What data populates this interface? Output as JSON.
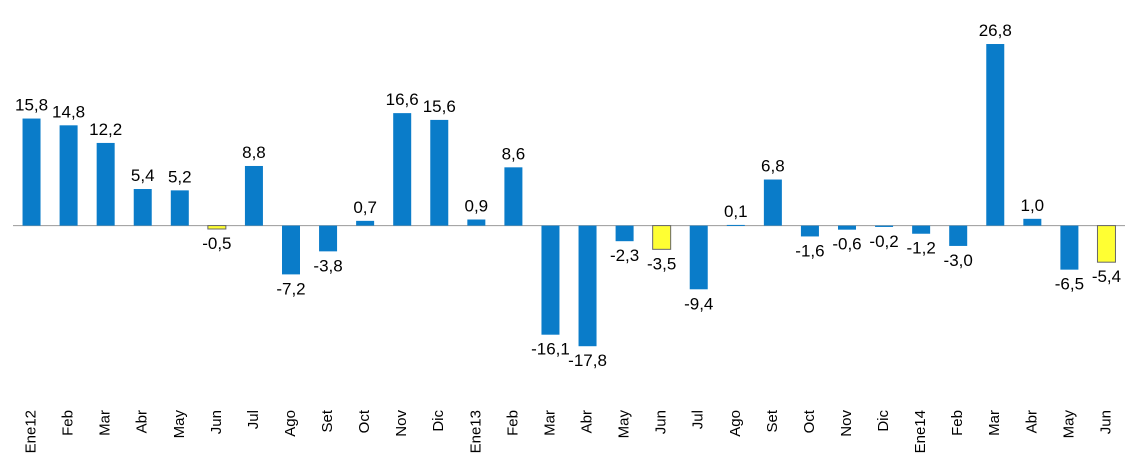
{
  "chart_data": {
    "type": "bar",
    "categories": [
      "Ene12",
      "Feb",
      "Mar",
      "Abr",
      "May",
      "Jun",
      "Jul",
      "Ago",
      "Set",
      "Oct",
      "Nov",
      "Dic",
      "Ene13",
      "Feb",
      "Mar",
      "Abr",
      "May",
      "Jun",
      "Jul",
      "Ago",
      "Set",
      "Oct",
      "Nov",
      "Dic",
      "Ene14",
      "Feb",
      "Mar",
      "Abr",
      "May",
      "Jun"
    ],
    "values": [
      15.8,
      14.8,
      12.2,
      5.4,
      5.2,
      -0.5,
      8.8,
      -7.2,
      -3.8,
      0.7,
      16.6,
      15.6,
      0.9,
      8.6,
      -16.1,
      -17.8,
      -2.3,
      -3.5,
      -9.4,
      0.1,
      6.8,
      -1.6,
      -0.6,
      -0.2,
      -1.2,
      -3.0,
      26.8,
      1.0,
      -6.5,
      -5.4
    ],
    "value_labels": [
      "15,8",
      "14,8",
      "12,2",
      "5,4",
      "5,2",
      "-0,5",
      "8,8",
      "-7,2",
      "-3,8",
      "0,7",
      "16,6",
      "15,6",
      "0,9",
      "8,6",
      "-16,1",
      "-17,8",
      "-2,3",
      "-3,5",
      "-9,4",
      "0,1",
      "6,8",
      "-1,6",
      "-0,6",
      "-0,2",
      "-1,2",
      "-3,0",
      "26,8",
      "1,0",
      "-6,5",
      "-5,4"
    ],
    "colors": [
      "#0a7cc9",
      "#0a7cc9",
      "#0a7cc9",
      "#0a7cc9",
      "#0a7cc9",
      "#ffff33",
      "#0a7cc9",
      "#0a7cc9",
      "#0a7cc9",
      "#0a7cc9",
      "#0a7cc9",
      "#0a7cc9",
      "#0a7cc9",
      "#0a7cc9",
      "#0a7cc9",
      "#0a7cc9",
      "#0a7cc9",
      "#ffff33",
      "#0a7cc9",
      "#0a7cc9",
      "#0a7cc9",
      "#0a7cc9",
      "#0a7cc9",
      "#0a7cc9",
      "#0a7cc9",
      "#0a7cc9",
      "#0a7cc9",
      "#0a7cc9",
      "#0a7cc9",
      "#ffff33"
    ],
    "ylim": [
      -25,
      33
    ]
  }
}
